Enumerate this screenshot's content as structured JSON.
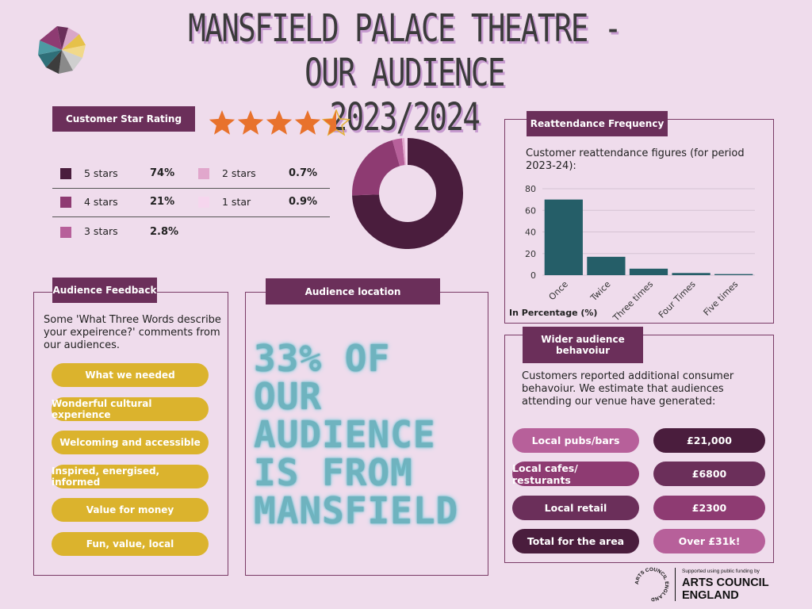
{
  "title_line1": "MANSFIELD PALACE THEATRE - OUR AUDIENCE",
  "title_line2": "2023/2024",
  "rating": {
    "label": "Customer Star Rating",
    "stars_value": 4.5,
    "stars_max": 5,
    "legend": [
      {
        "label": "5 stars",
        "value": "74%",
        "color": "#4a1d3d"
      },
      {
        "label": "4 stars",
        "value": "21%",
        "color": "#8e3b72"
      },
      {
        "label": "3 stars",
        "value": "2.8%",
        "color": "#b7609a"
      },
      {
        "label": "2 stars",
        "value": "0.7%",
        "color": "#e1a7cc"
      },
      {
        "label": "1 star",
        "value": "0.9%",
        "color": "#f6d6ee"
      }
    ]
  },
  "reattendance": {
    "label": "Reattendance Frequency",
    "description": "Customer reattendance figures (for period 2023-24):",
    "ylabel": "In Percentage (%)"
  },
  "feedback": {
    "label": "Audience Feedback",
    "description": "Some 'What Three Words describe your expeirence?' comments from our audiences.",
    "items": [
      "What we needed",
      "Wonderful cultural experience",
      "Welcoming and accessible",
      "Inspired, energised, informed",
      "Value for money",
      "Fun, value, local"
    ]
  },
  "location": {
    "label": "Audience location",
    "line1": "33% OF",
    "line2": "OUR",
    "line3": "AUDIENCE",
    "line4": "IS FROM",
    "line5": "MANSFIELD"
  },
  "wider": {
    "label": "Wider audience behavoiur",
    "description": "Customers reported additional consumer behavoiur. We estimate that audiences attending our venue have generated:",
    "rows": [
      {
        "category": "Local pubs/bars",
        "value": "£21,000"
      },
      {
        "category": "Local cafes/ resturants",
        "value": "£6800"
      },
      {
        "category": "Local retail",
        "value": "£2300"
      },
      {
        "category": "Total for the area",
        "value": "Over £31k!"
      }
    ]
  },
  "funder": {
    "small": "Supported using public funding by",
    "name1": "ARTS COUNCIL",
    "name2": "ENGLAND",
    "seal": "ARTS COUNCIL ENGLAND"
  },
  "chart_data": [
    {
      "type": "pie",
      "title": "",
      "categories": [
        "5 stars",
        "4 stars",
        "3 stars",
        "2 stars",
        "1 star"
      ],
      "values": [
        74,
        21,
        2.8,
        0.7,
        0.9
      ],
      "colors": [
        "#4a1d3d",
        "#8e3b72",
        "#b7609a",
        "#e1a7cc",
        "#f6d6ee"
      ],
      "donut": true
    },
    {
      "type": "bar",
      "title": "",
      "categories": [
        "Once",
        "Twice",
        "Three times",
        "Four Times",
        "Five times"
      ],
      "values": [
        70,
        17,
        6,
        2,
        1
      ],
      "ylabel": "In Percentage (%)",
      "ylim": [
        0,
        80
      ],
      "yticks": [
        0,
        20,
        40,
        60,
        80
      ],
      "grid": true,
      "color": "#255e68"
    }
  ]
}
